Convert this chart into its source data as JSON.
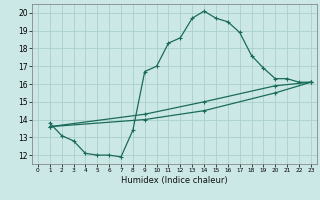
{
  "background_color": "#cce8e6",
  "grid_color": "#aacfcc",
  "line_color": "#1a6b5a",
  "xlabel": "Humidex (Indice chaleur)",
  "xlim": [
    -0.5,
    23.5
  ],
  "ylim": [
    11.5,
    20.5
  ],
  "xticks": [
    0,
    1,
    2,
    3,
    4,
    5,
    6,
    7,
    8,
    9,
    10,
    11,
    12,
    13,
    14,
    15,
    16,
    17,
    18,
    19,
    20,
    21,
    22,
    23
  ],
  "yticks": [
    12,
    13,
    14,
    15,
    16,
    17,
    18,
    19,
    20
  ],
  "curve1_x": [
    1,
    2,
    3,
    4,
    5,
    6,
    7,
    8,
    9,
    10,
    11,
    12,
    13,
    14,
    15,
    16,
    17,
    18,
    19,
    20,
    21,
    22,
    23
  ],
  "curve1_y": [
    13.8,
    13.1,
    12.8,
    12.1,
    12.0,
    12.0,
    11.9,
    13.4,
    16.7,
    17.0,
    18.3,
    18.6,
    19.7,
    20.1,
    19.7,
    19.5,
    18.9,
    17.6,
    16.9,
    16.3,
    16.3,
    16.1,
    16.1
  ],
  "line1_x": [
    1,
    9,
    14,
    20,
    23
  ],
  "line1_y": [
    13.6,
    14.3,
    15.0,
    15.9,
    16.1
  ],
  "line2_x": [
    1,
    9,
    14,
    20,
    23
  ],
  "line2_y": [
    13.6,
    14.0,
    14.5,
    15.5,
    16.1
  ]
}
